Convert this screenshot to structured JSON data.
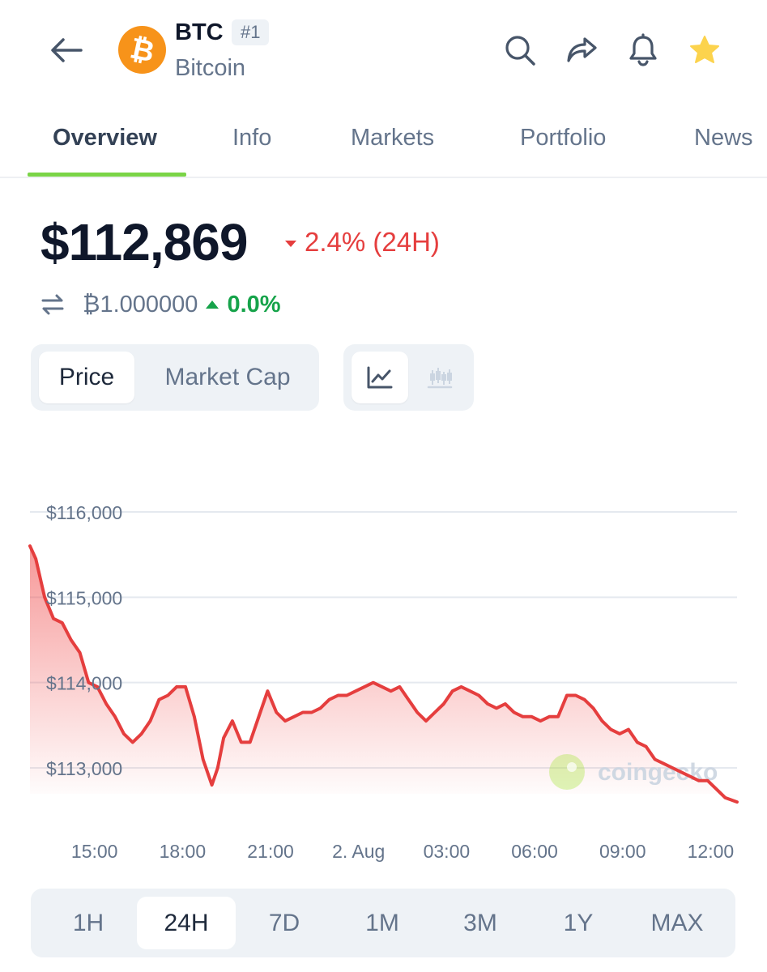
{
  "header": {
    "symbol": "BTC",
    "rank": "#1",
    "name": "Bitcoin",
    "logo_glyph": "₿",
    "logo_color": "#f7931a",
    "icons": [
      "back-arrow-icon",
      "search-icon",
      "share-icon",
      "bell-icon",
      "star-icon"
    ],
    "star_color": "#fcd34d"
  },
  "tabs": [
    {
      "label": "Overview",
      "active": true
    },
    {
      "label": "Info",
      "active": false
    },
    {
      "label": "Markets",
      "active": false
    },
    {
      "label": "Portfolio",
      "active": false
    },
    {
      "label": "News",
      "active": false
    }
  ],
  "price": {
    "value": "$112,869",
    "change": "2.4% (24H)",
    "change_direction": "down",
    "change_color": "#e53e3e",
    "btc_value": "₿1.000000",
    "btc_change": "0.0%",
    "btc_change_direction": "up",
    "btc_change_color": "#16a34a"
  },
  "chart_toggle": {
    "metric_options": [
      "Price",
      "Market Cap"
    ],
    "selected_metric": "Price",
    "chart_types": [
      "line-chart-icon",
      "candlestick-icon"
    ],
    "selected_chart_type": "line-chart-icon"
  },
  "watermark": "coingecko",
  "time_ranges": [
    "1H",
    "24H",
    "7D",
    "1M",
    "3M",
    "1Y",
    "MAX"
  ],
  "selected_range": "24H",
  "chart_data": {
    "type": "area",
    "ylim": [
      112300,
      116500
    ],
    "y_ticks": [
      116000,
      115000,
      114000,
      113000
    ],
    "y_tick_labels": [
      "$116,000",
      "$115,000",
      "$114,000",
      "$113,000"
    ],
    "x_tick_labels": [
      "15:00",
      "18:00",
      "21:00",
      "2. Aug",
      "03:00",
      "06:00",
      "09:00",
      "12:00"
    ],
    "x_tick_hours": [
      15,
      18,
      21,
      24,
      27,
      30,
      33,
      36
    ],
    "x_range_hours": [
      12.8,
      36.9
    ],
    "grid": true,
    "line_color": "#e53e3e",
    "series": [
      {
        "x_hours": [
          12.8,
          13.0,
          13.3,
          13.6,
          13.9,
          14.2,
          14.5,
          14.8,
          15.1,
          15.4,
          15.7,
          16.0,
          16.3,
          16.6,
          16.9,
          17.2,
          17.5,
          17.8,
          18.1,
          18.4,
          18.7,
          19.0,
          19.2,
          19.4,
          19.7,
          20.0,
          20.3,
          20.6,
          20.9,
          21.2,
          21.5,
          21.8,
          22.1,
          22.4,
          22.7,
          23.0,
          23.3,
          23.6,
          23.9,
          24.2,
          24.5,
          24.8,
          25.1,
          25.4,
          25.7,
          26.0,
          26.3,
          26.6,
          26.9,
          27.2,
          27.5,
          27.8,
          28.1,
          28.4,
          28.7,
          29.0,
          29.3,
          29.6,
          29.9,
          30.2,
          30.5,
          30.8,
          31.1,
          31.4,
          31.7,
          32.0,
          32.3,
          32.6,
          32.9,
          33.2,
          33.5,
          33.8,
          34.1,
          34.4,
          34.7,
          35.0,
          35.3,
          35.6,
          35.9,
          36.2,
          36.5,
          36.9
        ],
        "values": [
          115600,
          115450,
          115000,
          114750,
          114700,
          114500,
          114350,
          114000,
          113950,
          113750,
          113600,
          113400,
          113300,
          113400,
          113550,
          113800,
          113850,
          113950,
          113950,
          113600,
          113100,
          112800,
          113000,
          113350,
          113550,
          113300,
          113300,
          113600,
          113900,
          113650,
          113550,
          113600,
          113650,
          113650,
          113700,
          113800,
          113850,
          113850,
          113900,
          113950,
          114000,
          113950,
          113900,
          113950,
          113800,
          113650,
          113550,
          113650,
          113750,
          113900,
          113950,
          113900,
          113850,
          113750,
          113700,
          113750,
          113650,
          113600,
          113600,
          113550,
          113600,
          113600,
          113850,
          113850,
          113800,
          113700,
          113550,
          113450,
          113400,
          113450,
          113300,
          113250,
          113100,
          113050,
          113000,
          112950,
          112900,
          112850,
          112850,
          112750,
          112650,
          112600
        ]
      }
    ]
  }
}
